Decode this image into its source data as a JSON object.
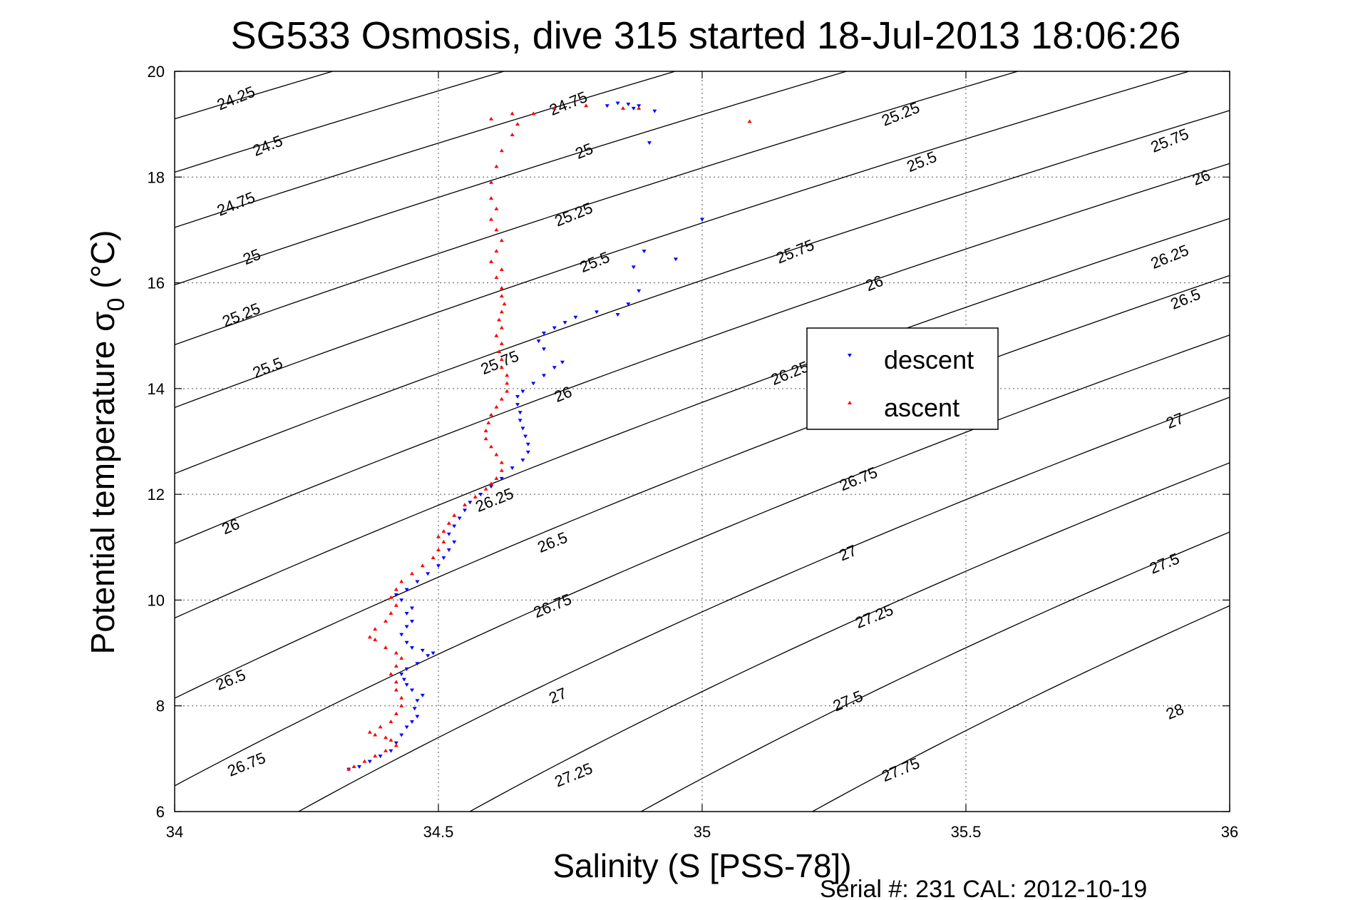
{
  "chart_data": {
    "type": "scatter",
    "title": "SG533 Osmosis, dive 315 started 18-Jul-2013 18:06:26",
    "xlabel": "Salinity (S [PSS-78])",
    "ylabel_main": "Potential temperature σ",
    "ylabel_sub": "0",
    "ylabel_unit": "(°C)",
    "xlim": [
      34,
      36
    ],
    "ylim": [
      6,
      20
    ],
    "xticks": [
      "34",
      "34.5",
      "35",
      "35.5",
      "36"
    ],
    "yticks": [
      "6",
      "8",
      "10",
      "12",
      "14",
      "16",
      "18",
      "20"
    ],
    "grid": true,
    "legend_position": "center-right",
    "footer": "Serial #: 231  CAL: 2012-10-19",
    "contours": {
      "levels": [
        24.25,
        24.5,
        24.75,
        25,
        25.25,
        25.5,
        25.75,
        26,
        26.25,
        26.5,
        26.75,
        27,
        27.25,
        27.5,
        27.75,
        28
      ],
      "labels": [
        {
          "text": "24.25",
          "s": 34.12,
          "t": 19.4
        },
        {
          "text": "24.5",
          "s": 34.18,
          "t": 18.5
        },
        {
          "text": "24.75",
          "s": 34.12,
          "t": 17.4
        },
        {
          "text": "25",
          "s": 34.15,
          "t": 16.4
        },
        {
          "text": "25.25",
          "s": 34.13,
          "t": 15.3
        },
        {
          "text": "25.5",
          "s": 34.18,
          "t": 14.3
        },
        {
          "text": "26",
          "s": 34.11,
          "t": 11.3
        },
        {
          "text": "26.5",
          "s": 34.11,
          "t": 8.4
        },
        {
          "text": "26.75",
          "s": 34.14,
          "t": 6.8
        },
        {
          "text": "24.75",
          "s": 34.75,
          "t": 19.3
        },
        {
          "text": "25",
          "s": 34.78,
          "t": 18.4
        },
        {
          "text": "25.25",
          "s": 34.76,
          "t": 17.2
        },
        {
          "text": "25.5",
          "s": 34.8,
          "t": 16.3
        },
        {
          "text": "25.75",
          "s": 34.62,
          "t": 14.4
        },
        {
          "text": "26",
          "s": 34.74,
          "t": 13.8
        },
        {
          "text": "26.25",
          "s": 34.61,
          "t": 11.8
        },
        {
          "text": "26.5",
          "s": 34.72,
          "t": 11.0
        },
        {
          "text": "26.75",
          "s": 34.72,
          "t": 9.8
        },
        {
          "text": "27",
          "s": 34.73,
          "t": 8.1
        },
        {
          "text": "27.25",
          "s": 34.76,
          "t": 6.6
        },
        {
          "text": "25.25",
          "s": 35.38,
          "t": 19.1
        },
        {
          "text": "25.5",
          "s": 35.42,
          "t": 18.2
        },
        {
          "text": "25.75",
          "s": 35.18,
          "t": 16.5
        },
        {
          "text": "26",
          "s": 35.33,
          "t": 15.9
        },
        {
          "text": "26.25",
          "s": 35.17,
          "t": 14.2
        },
        {
          "text": "26.75",
          "s": 35.3,
          "t": 12.2
        },
        {
          "text": "27",
          "s": 35.28,
          "t": 10.8
        },
        {
          "text": "27.25",
          "s": 35.33,
          "t": 9.6
        },
        {
          "text": "27.5",
          "s": 35.28,
          "t": 8.0
        },
        {
          "text": "27.75",
          "s": 35.38,
          "t": 6.7
        },
        {
          "text": "25.75",
          "s": 35.89,
          "t": 18.6
        },
        {
          "text": "26",
          "s": 35.95,
          "t": 17.9
        },
        {
          "text": "26.25",
          "s": 35.89,
          "t": 16.4
        },
        {
          "text": "26.5",
          "s": 35.92,
          "t": 15.6
        },
        {
          "text": "27",
          "s": 35.9,
          "t": 13.3
        },
        {
          "text": "27.5",
          "s": 35.88,
          "t": 10.6
        },
        {
          "text": "28",
          "s": 35.9,
          "t": 7.8
        }
      ]
    },
    "series": [
      {
        "name": "descent",
        "color": "#0000ff",
        "marker": "triangle-down",
        "points": [
          [
            34.33,
            6.8
          ],
          [
            34.35,
            6.85
          ],
          [
            34.37,
            6.95
          ],
          [
            34.39,
            7.05
          ],
          [
            34.41,
            7.15
          ],
          [
            34.42,
            7.3
          ],
          [
            34.43,
            7.45
          ],
          [
            34.44,
            7.6
          ],
          [
            34.45,
            7.7
          ],
          [
            34.46,
            7.8
          ],
          [
            34.455,
            7.95
          ],
          [
            34.46,
            8.1
          ],
          [
            34.47,
            8.2
          ],
          [
            34.45,
            8.3
          ],
          [
            34.44,
            8.4
          ],
          [
            34.435,
            8.5
          ],
          [
            34.43,
            8.6
          ],
          [
            34.44,
            8.7
          ],
          [
            34.46,
            8.8
          ],
          [
            34.48,
            8.95
          ],
          [
            34.49,
            9.0
          ],
          [
            34.47,
            9.05
          ],
          [
            34.45,
            9.1
          ],
          [
            34.44,
            9.2
          ],
          [
            34.43,
            9.35
          ],
          [
            34.44,
            9.5
          ],
          [
            34.45,
            9.6
          ],
          [
            34.44,
            9.75
          ],
          [
            34.45,
            9.85
          ],
          [
            34.43,
            10.0
          ],
          [
            34.42,
            10.1
          ],
          [
            34.44,
            10.2
          ],
          [
            34.46,
            10.35
          ],
          [
            34.48,
            10.5
          ],
          [
            34.5,
            10.65
          ],
          [
            34.51,
            10.8
          ],
          [
            34.52,
            10.95
          ],
          [
            34.53,
            11.1
          ],
          [
            34.52,
            11.25
          ],
          [
            34.53,
            11.4
          ],
          [
            34.54,
            11.55
          ],
          [
            34.55,
            11.7
          ],
          [
            34.56,
            11.85
          ],
          [
            34.58,
            12.0
          ],
          [
            34.6,
            12.15
          ],
          [
            34.62,
            12.3
          ],
          [
            34.64,
            12.5
          ],
          [
            34.66,
            12.65
          ],
          [
            34.67,
            12.8
          ],
          [
            34.67,
            12.95
          ],
          [
            34.665,
            13.1
          ],
          [
            34.66,
            13.25
          ],
          [
            34.655,
            13.4
          ],
          [
            34.655,
            13.55
          ],
          [
            34.65,
            13.7
          ],
          [
            34.65,
            13.85
          ],
          [
            34.66,
            13.95
          ],
          [
            34.68,
            14.1
          ],
          [
            34.7,
            14.25
          ],
          [
            34.72,
            14.4
          ],
          [
            34.735,
            14.5
          ],
          [
            34.7,
            14.75
          ],
          [
            34.69,
            14.9
          ],
          [
            34.7,
            15.05
          ],
          [
            34.72,
            15.15
          ],
          [
            34.74,
            15.25
          ],
          [
            34.76,
            15.35
          ],
          [
            34.8,
            15.45
          ],
          [
            34.84,
            15.4
          ],
          [
            34.86,
            15.6
          ],
          [
            34.88,
            15.85
          ],
          [
            34.87,
            16.3
          ],
          [
            34.89,
            16.6
          ],
          [
            34.95,
            16.45
          ],
          [
            35.0,
            17.2
          ],
          [
            34.9,
            18.65
          ],
          [
            34.87,
            19.3
          ],
          [
            34.91,
            19.25
          ],
          [
            34.88,
            19.35
          ],
          [
            34.86,
            19.38
          ],
          [
            34.84,
            19.4
          ],
          [
            34.82,
            19.35
          ]
        ]
      },
      {
        "name": "ascent",
        "color": "#ff0000",
        "marker": "triangle-up",
        "points": [
          [
            34.33,
            6.8
          ],
          [
            34.34,
            6.85
          ],
          [
            34.36,
            6.95
          ],
          [
            34.38,
            7.05
          ],
          [
            34.4,
            7.15
          ],
          [
            34.42,
            7.25
          ],
          [
            34.41,
            7.35
          ],
          [
            34.4,
            7.4
          ],
          [
            34.38,
            7.45
          ],
          [
            34.37,
            7.5
          ],
          [
            34.39,
            7.6
          ],
          [
            34.41,
            7.7
          ],
          [
            34.42,
            7.85
          ],
          [
            34.43,
            8.0
          ],
          [
            34.43,
            8.15
          ],
          [
            34.42,
            8.3
          ],
          [
            34.42,
            8.45
          ],
          [
            34.41,
            8.6
          ],
          [
            34.42,
            8.75
          ],
          [
            34.43,
            8.9
          ],
          [
            34.42,
            9.0
          ],
          [
            34.4,
            9.1
          ],
          [
            34.38,
            9.25
          ],
          [
            34.37,
            9.3
          ],
          [
            34.38,
            9.45
          ],
          [
            34.4,
            9.6
          ],
          [
            34.41,
            9.75
          ],
          [
            34.42,
            9.9
          ],
          [
            34.41,
            10.05
          ],
          [
            34.42,
            10.2
          ],
          [
            34.43,
            10.35
          ],
          [
            34.45,
            10.5
          ],
          [
            34.47,
            10.65
          ],
          [
            34.49,
            10.8
          ],
          [
            34.5,
            10.95
          ],
          [
            34.51,
            11.1
          ],
          [
            34.5,
            11.2
          ],
          [
            34.51,
            11.3
          ],
          [
            34.52,
            11.45
          ],
          [
            34.53,
            11.6
          ],
          [
            34.55,
            11.8
          ],
          [
            34.57,
            11.95
          ],
          [
            34.59,
            12.1
          ],
          [
            34.6,
            12.2
          ],
          [
            34.61,
            12.3
          ],
          [
            34.62,
            12.45
          ],
          [
            34.62,
            12.6
          ],
          [
            34.61,
            12.75
          ],
          [
            34.6,
            12.9
          ],
          [
            34.59,
            13.05
          ],
          [
            34.59,
            13.2
          ],
          [
            34.595,
            13.35
          ],
          [
            34.6,
            13.5
          ],
          [
            34.61,
            13.65
          ],
          [
            34.62,
            13.8
          ],
          [
            34.63,
            13.95
          ],
          [
            34.63,
            14.1
          ],
          [
            34.63,
            14.25
          ],
          [
            34.62,
            14.4
          ],
          [
            34.62,
            14.55
          ],
          [
            34.615,
            14.7
          ],
          [
            34.62,
            14.85
          ],
          [
            34.61,
            15.0
          ],
          [
            34.62,
            15.15
          ],
          [
            34.615,
            15.3
          ],
          [
            34.62,
            15.45
          ],
          [
            34.625,
            15.6
          ],
          [
            34.62,
            15.75
          ],
          [
            34.62,
            15.9
          ],
          [
            34.61,
            16.1
          ],
          [
            34.62,
            16.25
          ],
          [
            34.6,
            16.4
          ],
          [
            34.61,
            16.6
          ],
          [
            34.62,
            16.8
          ],
          [
            34.61,
            17.0
          ],
          [
            34.6,
            17.2
          ],
          [
            34.61,
            17.4
          ],
          [
            34.6,
            17.6
          ],
          [
            34.6,
            17.9
          ],
          [
            34.61,
            18.2
          ],
          [
            34.62,
            18.5
          ],
          [
            34.64,
            18.8
          ],
          [
            34.65,
            19.0
          ],
          [
            34.6,
            19.1
          ],
          [
            34.64,
            19.2
          ],
          [
            34.68,
            19.2
          ],
          [
            34.72,
            19.3
          ],
          [
            34.78,
            19.35
          ],
          [
            34.85,
            19.3
          ],
          [
            34.88,
            19.3
          ],
          [
            35.09,
            19.05
          ]
        ]
      }
    ]
  }
}
